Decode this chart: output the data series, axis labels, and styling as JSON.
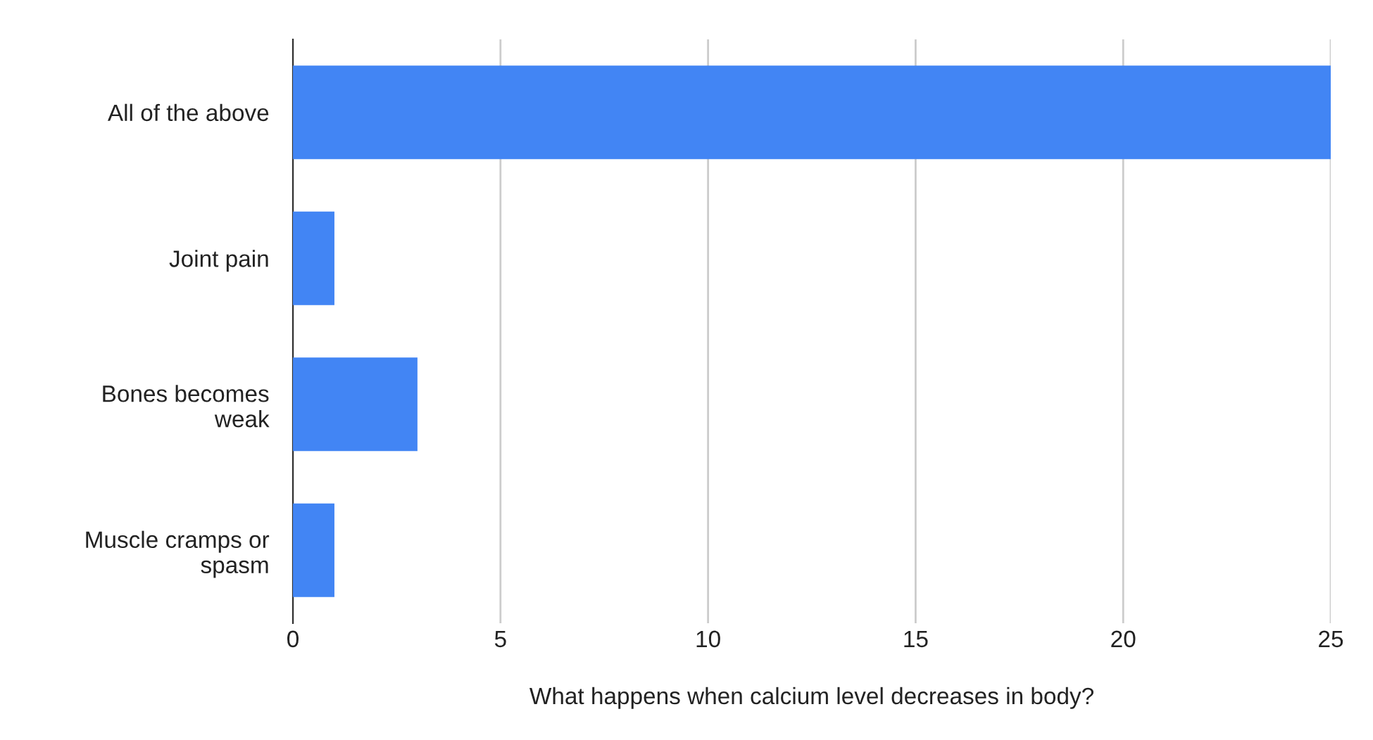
{
  "chart_data": {
    "type": "bar",
    "orientation": "horizontal",
    "categories": [
      "All of the above",
      "Joint pain",
      "Bones becomes\nweak",
      "Muscle cramps or\nspasm"
    ],
    "values": [
      25,
      1,
      3,
      1
    ],
    "color": "#4285f4",
    "xlim": [
      0,
      25
    ],
    "xticks": [
      0,
      5,
      10,
      15,
      20,
      25
    ],
    "grid": "x",
    "xlabel": "What happens when calcium level decreases in body?"
  }
}
